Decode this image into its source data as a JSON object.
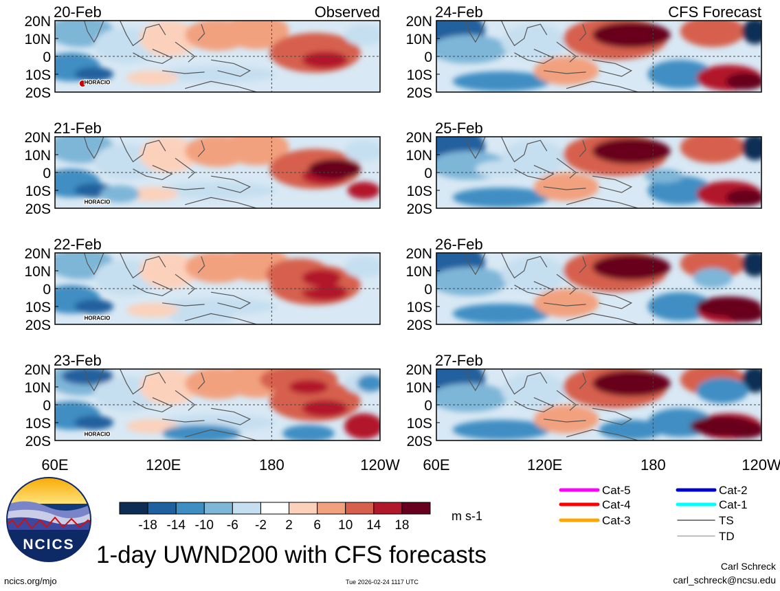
{
  "figure": {
    "main_title": "1-day UWND200 with CFS forecasts",
    "units": "m s-1",
    "url": "ncics.org/mjo",
    "timestamp": "Tue 2026-02-24 1117 UTC",
    "author": "Carl Schreck",
    "email": "carl_schreck@ncsu.edu",
    "logo_text": "NCICS",
    "column_titles": {
      "observed": "Observed",
      "forecast": "CFS Forecast"
    }
  },
  "chart_data": {
    "type": "heatmap",
    "variable": "200-hPa zonal wind (UWND200)",
    "units": "m s-1",
    "x_ticks": [
      "60E",
      "120E",
      "180",
      "120W"
    ],
    "x_range_deg": [
      60,
      240
    ],
    "y_ticks": [
      "20N",
      "10N",
      "0",
      "10S",
      "20S"
    ],
    "y_range_deg": [
      -20,
      20
    ],
    "colorbar": {
      "levels": [
        -18,
        -14,
        -10,
        -6,
        -2,
        2,
        6,
        10,
        14,
        18
      ],
      "labels": [
        "-18",
        "-14",
        "-10",
        "-6",
        "-2",
        "2",
        "6",
        "10",
        "14",
        "18"
      ],
      "colors": [
        "#0d2d55",
        "#21609e",
        "#3f8ec3",
        "#7eb6d8",
        "#c6dff0",
        "#ffffff",
        "#fbd1bc",
        "#f2a17f",
        "#d6604d",
        "#b2182b",
        "#67001f"
      ]
    },
    "panels": [
      {
        "date": "20-Feb",
        "source": "observed",
        "storm_label": "HORACIO"
      },
      {
        "date": "21-Feb",
        "source": "observed",
        "storm_label": "HORACIO"
      },
      {
        "date": "22-Feb",
        "source": "observed",
        "storm_label": "HORACIO"
      },
      {
        "date": "23-Feb",
        "source": "observed",
        "storm_label": "HORACIO"
      },
      {
        "date": "24-Feb",
        "source": "forecast",
        "storm_label": ""
      },
      {
        "date": "25-Feb",
        "source": "forecast",
        "storm_label": ""
      },
      {
        "date": "26-Feb",
        "source": "forecast",
        "storm_label": ""
      },
      {
        "date": "27-Feb",
        "source": "forecast",
        "storm_label": ""
      }
    ],
    "legend": [
      {
        "label": "Cat-5",
        "color": "#ff00ff"
      },
      {
        "label": "Cat-4",
        "color": "#ff0000"
      },
      {
        "label": "Cat-3",
        "color": "#ffa500"
      },
      {
        "label": "Cat-2",
        "color": "#0000cd"
      },
      {
        "label": "Cat-1",
        "color": "#00ffff"
      },
      {
        "label": "TS",
        "color": "#555555"
      },
      {
        "label": "TD",
        "color": "#aaaaaa"
      }
    ]
  }
}
